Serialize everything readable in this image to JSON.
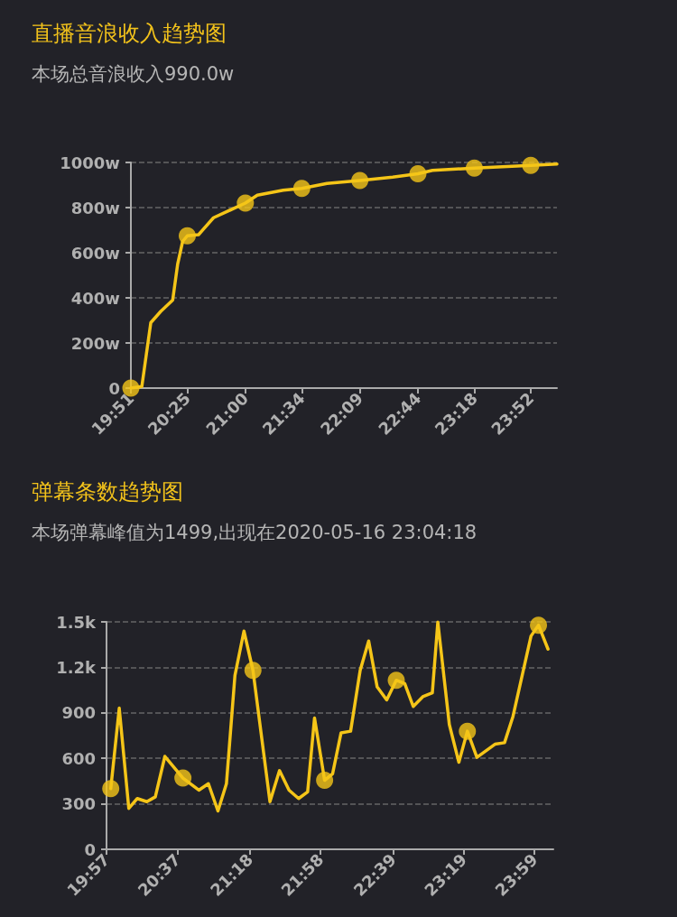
{
  "chart_data": [
    {
      "type": "line",
      "title": "直播音浪收入趋势图",
      "subtitle": "本场总音浪收入990.0w",
      "grid": "y",
      "line_style": "solid",
      "xlim": [
        19.85,
        24.13
      ],
      "xticks": [
        {
          "value": 19.85,
          "label": "19:51"
        },
        {
          "value": 20.4167,
          "label": "20:25"
        },
        {
          "value": 21,
          "label": "21:00"
        },
        {
          "value": 21.5667,
          "label": "21:34"
        },
        {
          "value": 22.15,
          "label": "22:09"
        },
        {
          "value": 22.7333,
          "label": "22:44"
        },
        {
          "value": 23.3,
          "label": "23:18"
        },
        {
          "value": 23.8667,
          "label": "23:52"
        }
      ],
      "ylim": [
        0,
        1000
      ],
      "yticks": [
        0,
        {
          "value": 200,
          "label": "200w"
        },
        {
          "value": 400,
          "label": "400w"
        },
        {
          "value": 600,
          "label": "600w"
        },
        {
          "value": 800,
          "label": "800w"
        },
        {
          "value": 1000,
          "label": "1000w"
        }
      ],
      "series": [
        {
          "type": "line",
          "color": "#f5c518",
          "marker": "none",
          "x": [
            19.85,
            19.96,
            20.05,
            20.15,
            20.27,
            20.32,
            20.37,
            20.4167,
            20.53,
            20.68,
            21,
            21.12,
            21.38,
            21.5667,
            21.82,
            22.15,
            22.48,
            22.7333,
            22.88,
            23.3,
            23.8667,
            24.13
          ],
          "values": [
            0,
            7,
            290,
            340,
            390,
            550,
            650,
            675,
            680,
            755,
            820,
            855,
            877,
            885,
            907,
            920,
            935,
            950,
            965,
            975,
            987,
            993
          ]
        },
        {
          "type": "scatter",
          "color": "#f5c518",
          "marker": "circle",
          "x": [
            19.85,
            20.4167,
            21,
            21.5667,
            22.15,
            22.7333,
            23.3,
            23.8667
          ],
          "values": [
            0,
            675,
            820,
            885,
            920,
            950,
            975,
            987
          ]
        }
      ]
    },
    {
      "type": "line",
      "title": "弹幕条数趋势图",
      "subtitle": "本场弹幕峰值为1499,出现在2020-05-16 23:04:18",
      "grid": "y",
      "line_style": "solid",
      "xlim": [
        19.95,
        24.16
      ],
      "xticks": [
        {
          "value": 19.95,
          "label": "19:57"
        },
        {
          "value": 20.6167,
          "label": "20:37"
        },
        {
          "value": 21.3,
          "label": "21:18"
        },
        {
          "value": 21.9667,
          "label": "21:58"
        },
        {
          "value": 22.65,
          "label": "22:39"
        },
        {
          "value": 23.3167,
          "label": "23:19"
        },
        {
          "value": 23.9833,
          "label": "23:59"
        }
      ],
      "ylim": [
        0,
        1500
      ],
      "yticks": [
        0,
        300,
        600,
        900,
        {
          "value": 1200,
          "label": "1.2k"
        },
        {
          "value": 1500,
          "label": "1.5k"
        }
      ],
      "series": [
        {
          "type": "line",
          "color": "#f5c518",
          "marker": "none",
          "x": [
            19.99,
            20.07,
            20.16,
            20.24,
            20.33,
            20.41,
            20.5,
            20.67,
            20.82,
            20.91,
            21,
            21.08,
            21.16,
            21.245,
            21.33,
            21.49,
            21.58,
            21.67,
            21.76,
            21.845,
            21.91,
            22.005,
            22.08,
            22.16,
            22.25,
            22.34,
            22.42,
            22.5,
            22.59,
            22.68,
            22.76,
            22.84,
            22.93,
            23.02,
            23.0717,
            23.18,
            23.27,
            23.35,
            23.44,
            23.61,
            23.7,
            23.78,
            23.95,
            24.02,
            24.11
          ],
          "values": [
            400,
            931,
            270,
            335,
            314,
            346,
            613,
            470,
            390,
            433,
            253,
            433,
            1147,
            1439,
            1180,
            314,
            519,
            390,
            335,
            379,
            866,
            455,
            498,
            768,
            779,
            1180,
            1374,
            1071,
            985,
            1115,
            1093,
            942,
            1006,
            1032,
            1499,
            823,
            574,
            779,
            606,
            693,
            703,
            877,
            1407,
            1478,
            1320
          ]
        },
        {
          "type": "scatter",
          "color": "#f5c518",
          "marker": "circle",
          "x": [
            19.99,
            20.67,
            21.33,
            22.005,
            22.68,
            23.35,
            24.02
          ],
          "values": [
            400,
            470,
            1180,
            455,
            1115,
            779,
            1478
          ]
        }
      ]
    }
  ]
}
